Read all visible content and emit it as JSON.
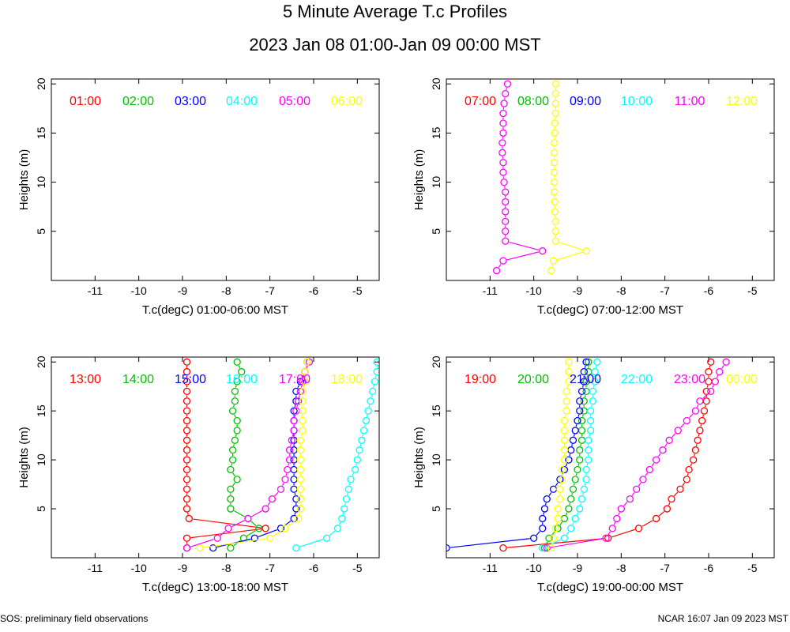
{
  "figure": {
    "title": "5 Minute Average T.c Profiles",
    "subtitle": "2023 Jan 08 01:00-Jan 09 00:00 MST",
    "footer_left": "SOS: preliminary field observations",
    "footer_right": "NCAR 16:07 Jan 09 2023 MST"
  },
  "chart_data": [
    {
      "type": "line",
      "xlabel": "T.c(degC) 01:00-06:00 MST",
      "ylabel": "Heights (m)",
      "xlim": [
        -12,
        -4.5
      ],
      "ylim": [
        0,
        20.5
      ],
      "xticks": [
        -11,
        -10,
        -9,
        -8,
        -7,
        -6,
        -5
      ],
      "yticks": [
        5,
        10,
        15,
        20
      ],
      "heights": [
        1,
        2,
        3,
        4,
        5,
        6,
        7,
        8,
        9,
        10,
        11,
        12,
        13,
        14,
        15,
        16,
        17,
        18,
        19,
        20
      ],
      "series": [
        {
          "name": "01:00",
          "color": "#ff0000",
          "values": []
        },
        {
          "name": "02:00",
          "color": "#00c000",
          "values": []
        },
        {
          "name": "03:00",
          "color": "#0000ff",
          "values": []
        },
        {
          "name": "04:00",
          "color": "#00ffff",
          "values": []
        },
        {
          "name": "05:00",
          "color": "#ff00ff",
          "values": []
        },
        {
          "name": "06:00",
          "color": "#ffff00",
          "values": []
        }
      ]
    },
    {
      "type": "line",
      "xlabel": "T.c(degC) 07:00-12:00 MST",
      "ylabel": "Heights (m)",
      "xlim": [
        -12,
        -4.5
      ],
      "ylim": [
        0,
        20.5
      ],
      "xticks": [
        -11,
        -10,
        -9,
        -8,
        -7,
        -6,
        -5
      ],
      "yticks": [
        5,
        10,
        15,
        20
      ],
      "heights": [
        1,
        2,
        3,
        4,
        5,
        6,
        7,
        8,
        9,
        10,
        11,
        12,
        13,
        14,
        15,
        16,
        17,
        18,
        19,
        20
      ],
      "series": [
        {
          "name": "07:00",
          "color": "#ff0000",
          "values": []
        },
        {
          "name": "08:00",
          "color": "#00c000",
          "values": []
        },
        {
          "name": "09:00",
          "color": "#0000ff",
          "values": []
        },
        {
          "name": "10:00",
          "color": "#00ffff",
          "values": []
        },
        {
          "name": "11:00",
          "color": "#ff00ff",
          "values": [
            -10.85,
            -10.7,
            -9.8,
            -10.65,
            -10.65,
            -10.65,
            -10.65,
            -10.65,
            -10.65,
            -10.68,
            -10.7,
            -10.7,
            -10.72,
            -10.72,
            -10.7,
            -10.7,
            -10.7,
            -10.68,
            -10.65,
            -10.6
          ]
        },
        {
          "name": "12:00",
          "color": "#ffff00",
          "values": [
            -9.6,
            -9.55,
            -8.8,
            -9.5,
            -9.5,
            -9.5,
            -9.52,
            -9.52,
            -9.53,
            -9.53,
            -9.53,
            -9.53,
            -9.53,
            -9.53,
            -9.52,
            -9.52,
            -9.5,
            -9.5,
            -9.5,
            -9.5
          ]
        }
      ]
    },
    {
      "type": "line",
      "xlabel": "T.c(degC) 13:00-18:00 MST",
      "ylabel": "Heights (m)",
      "xlim": [
        -12,
        -4.5
      ],
      "ylim": [
        0,
        20.5
      ],
      "xticks": [
        -11,
        -10,
        -9,
        -8,
        -7,
        -6,
        -5
      ],
      "yticks": [
        5,
        10,
        15,
        20
      ],
      "heights": [
        1,
        2,
        3,
        4,
        5,
        6,
        7,
        8,
        9,
        10,
        11,
        12,
        13,
        14,
        15,
        16,
        17,
        18,
        19,
        20
      ],
      "series": [
        {
          "name": "13:00",
          "color": "#ff0000",
          "values": [
            -8.9,
            -8.9,
            -7.1,
            -8.85,
            -8.9,
            -8.9,
            -8.9,
            -8.9,
            -8.9,
            -8.9,
            -8.9,
            -8.9,
            -8.9,
            -8.9,
            -8.9,
            -8.9,
            -8.9,
            -8.9,
            -8.9,
            -8.9
          ]
        },
        {
          "name": "14:00",
          "color": "#00c000",
          "values": [
            -7.9,
            -7.6,
            -7.25,
            -7.5,
            -7.9,
            -7.9,
            -7.9,
            -7.75,
            -7.9,
            -7.85,
            -7.85,
            -7.8,
            -7.75,
            -7.75,
            -7.85,
            -7.8,
            -7.8,
            -7.75,
            -7.65,
            -7.75
          ]
        },
        {
          "name": "15:00",
          "color": "#0000ff",
          "values": [
            -8.3,
            -7.35,
            -6.75,
            -6.45,
            -6.4,
            -6.4,
            -6.45,
            -6.45,
            -6.45,
            -6.45,
            -6.45,
            -6.45,
            -6.45,
            -6.45,
            -6.45,
            -6.4,
            -6.4,
            -6.3,
            -6.2,
            -6.15
          ]
        },
        {
          "name": "16:00",
          "color": "#00ffff",
          "values": [
            -6.4,
            -5.7,
            -5.45,
            -5.35,
            -5.3,
            -5.25,
            -5.2,
            -5.15,
            -5.05,
            -5.0,
            -4.95,
            -4.9,
            -4.85,
            -4.8,
            -4.75,
            -4.7,
            -4.65,
            -4.6,
            -4.55,
            -4.55
          ]
        },
        {
          "name": "17:00",
          "color": "#ff00ff",
          "values": [
            -8.9,
            -8.2,
            -7.95,
            -7.5,
            -7.1,
            -6.95,
            -6.75,
            -6.65,
            -6.6,
            -6.55,
            -6.55,
            -6.5,
            -6.45,
            -6.45,
            -6.4,
            -6.35,
            -6.3,
            -6.25,
            -6.2,
            -6.1
          ]
        },
        {
          "name": "18:00",
          "color": "#ffff00",
          "values": [
            -8.6,
            -7.0,
            -6.65,
            -6.35,
            -6.3,
            -6.3,
            -6.3,
            -6.3,
            -6.3,
            -6.3,
            -6.3,
            -6.3,
            -6.25,
            -6.25,
            -6.25,
            -6.25,
            -6.25,
            -6.2,
            -6.2,
            -6.15
          ]
        }
      ]
    },
    {
      "type": "line",
      "xlabel": "T.c(degC) 19:00-00:00 MST",
      "ylabel": "Heights (m)",
      "xlim": [
        -12,
        -4.5
      ],
      "ylim": [
        0,
        20.5
      ],
      "xticks": [
        -11,
        -10,
        -9,
        -8,
        -7,
        -6,
        -5
      ],
      "yticks": [
        5,
        10,
        15,
        20
      ],
      "heights": [
        1,
        2,
        3,
        4,
        5,
        6,
        7,
        8,
        9,
        10,
        11,
        12,
        13,
        14,
        15,
        16,
        17,
        18,
        19,
        20
      ],
      "series": [
        {
          "name": "19:00",
          "color": "#ff0000",
          "values": [
            -10.7,
            -8.3,
            -7.6,
            -7.2,
            -6.95,
            -6.85,
            -6.65,
            -6.5,
            -6.45,
            -6.35,
            -6.3,
            -6.25,
            -6.2,
            -6.15,
            -6.1,
            -6.05,
            -6.05,
            -6.0,
            -6.0,
            -5.95
          ]
        },
        {
          "name": "20:00",
          "color": "#00c000",
          "values": [
            -9.75,
            -9.65,
            -9.45,
            -9.3,
            -9.2,
            -9.15,
            -9.1,
            -9.05,
            -9.0,
            -8.95,
            -8.95,
            -8.9,
            -8.9,
            -8.9,
            -8.85,
            -8.85,
            -8.8,
            -8.8,
            -8.75,
            -8.75
          ]
        },
        {
          "name": "21:00",
          "color": "#0000ff",
          "values": [
            -12.0,
            -10.0,
            -9.8,
            -9.8,
            -9.75,
            -9.7,
            -9.55,
            -9.4,
            -9.3,
            -9.2,
            -9.15,
            -9.1,
            -9.05,
            -9.0,
            -8.95,
            -8.95,
            -8.9,
            -8.85,
            -8.85,
            -8.8
          ]
        },
        {
          "name": "22:00",
          "color": "#00ffff",
          "values": [
            -9.8,
            -9.3,
            -9.15,
            -9.05,
            -8.95,
            -8.9,
            -8.85,
            -8.8,
            -8.8,
            -8.75,
            -8.75,
            -8.75,
            -8.7,
            -8.7,
            -8.7,
            -8.65,
            -8.65,
            -8.6,
            -8.6,
            -8.55
          ]
        },
        {
          "name": "23:00",
          "color": "#ff00ff",
          "values": [
            -9.7,
            -8.35,
            -8.2,
            -8.1,
            -8.0,
            -7.8,
            -7.65,
            -7.5,
            -7.35,
            -7.2,
            -7.05,
            -6.9,
            -6.7,
            -6.5,
            -6.3,
            -6.2,
            -5.95,
            -5.85,
            -5.75,
            -5.6
          ]
        },
        {
          "name": "00:00",
          "color": "#ffff00",
          "values": [
            -9.6,
            -9.55,
            -9.5,
            -9.45,
            -9.45,
            -9.4,
            -9.4,
            -9.35,
            -9.35,
            -9.3,
            -9.3,
            -9.3,
            -9.3,
            -9.3,
            -9.25,
            -9.25,
            -9.25,
            -9.2,
            -9.2,
            -9.2
          ]
        }
      ]
    }
  ]
}
